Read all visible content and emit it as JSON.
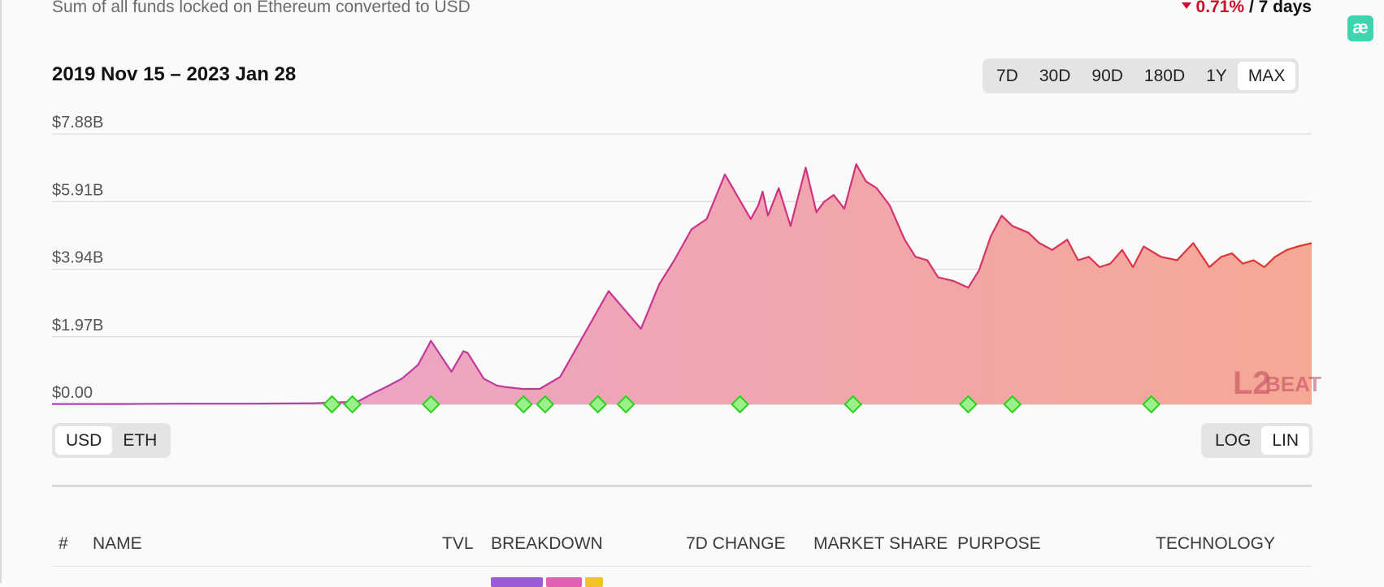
{
  "header": {
    "subtitle": "Sum of all funds locked on Ethereum converted to USD",
    "change_value": "0.71%",
    "change_period": "/ 7 days",
    "change_direction": "down",
    "negative_color": "#c8102e"
  },
  "extension_badge": {
    "label": "æ"
  },
  "date_range": "2019 Nov 15 – 2023 Jan 28",
  "range_options": [
    {
      "label": "7D",
      "active": false
    },
    {
      "label": "30D",
      "active": false
    },
    {
      "label": "90D",
      "active": false
    },
    {
      "label": "180D",
      "active": false
    },
    {
      "label": "1Y",
      "active": false
    },
    {
      "label": "MAX",
      "active": true
    }
  ],
  "unit_options": [
    {
      "label": "USD",
      "active": true
    },
    {
      "label": "ETH",
      "active": false
    }
  ],
  "scale_options": [
    {
      "label": "LOG",
      "active": false
    },
    {
      "label": "LIN",
      "active": true
    }
  ],
  "watermark": {
    "number": "L2",
    "text": "BEAT"
  },
  "chart_data": {
    "type": "area",
    "title": "",
    "xlabel": "",
    "ylabel": "",
    "x_range": [
      "2019-11-15",
      "2023-01-28"
    ],
    "ylim": [
      0,
      7.88
    ],
    "y_unit": "B USD",
    "y_ticks": [
      {
        "value": 0,
        "label": "$0.00"
      },
      {
        "value": 1.97,
        "label": "$1.97B"
      },
      {
        "value": 3.94,
        "label": "$3.94B"
      },
      {
        "value": 5.91,
        "label": "$5.91B"
      },
      {
        "value": 7.88,
        "label": "$7.88B"
      }
    ],
    "grid": true,
    "colors": {
      "start": "#c0389a",
      "end": "#e0362a",
      "fill_start": "#e9a3d2",
      "fill_end": "#f6a895",
      "marker_fill": "#9af08a",
      "marker_stroke": "#2ecf1e"
    },
    "series": [
      {
        "x": [
          "2019-11-15",
          "2020-01-15",
          "2020-03-15",
          "2020-05-15",
          "2020-07-15",
          "2020-08-25",
          "2020-09-10",
          "2020-09-20",
          "2020-10-05",
          "2020-10-20",
          "2020-11-01",
          "2020-11-20",
          "2020-12-01",
          "2020-12-05",
          "2020-12-20",
          "2021-01-01",
          "2021-01-10",
          "2021-01-25",
          "2021-02-10",
          "2021-03-01",
          "2021-04-15",
          "2021-05-15",
          "2021-06-01",
          "2021-06-15",
          "2021-07-01",
          "2021-07-15",
          "2021-08-01",
          "2021-08-25",
          "2021-09-01",
          "2021-09-05",
          "2021-09-10",
          "2021-09-20",
          "2021-10-01",
          "2021-10-15",
          "2021-10-25",
          "2021-11-01",
          "2021-11-10",
          "2021-11-20",
          "2021-12-01",
          "2021-12-10",
          "2021-12-20",
          "2022-01-01",
          "2022-01-15",
          "2022-01-25",
          "2022-02-05",
          "2022-02-15",
          "2022-03-01",
          "2022-03-15",
          "2022-03-25",
          "2022-04-05",
          "2022-04-15",
          "2022-04-25",
          "2022-05-10",
          "2022-05-20",
          "2022-06-01",
          "2022-06-15",
          "2022-06-25",
          "2022-07-05",
          "2022-07-15",
          "2022-07-25",
          "2022-08-05",
          "2022-08-15",
          "2022-08-25",
          "2022-09-10",
          "2022-09-25",
          "2022-10-10",
          "2022-10-25",
          "2022-11-05",
          "2022-11-15",
          "2022-11-25",
          "2022-12-05",
          "2022-12-15",
          "2022-12-25",
          "2023-01-05",
          "2023-01-15",
          "2023-01-28"
        ],
        "values": [
          0.01,
          0.01,
          0.02,
          0.02,
          0.03,
          0.08,
          0.35,
          0.5,
          0.75,
          1.15,
          1.85,
          0.95,
          1.55,
          1.5,
          0.75,
          0.55,
          0.5,
          0.45,
          0.45,
          0.8,
          3.3,
          2.2,
          3.5,
          4.2,
          5.1,
          5.4,
          6.7,
          5.4,
          5.8,
          6.2,
          5.5,
          6.3,
          5.2,
          6.9,
          5.6,
          5.9,
          6.1,
          5.7,
          7.0,
          6.5,
          6.3,
          5.8,
          4.8,
          4.3,
          4.2,
          3.7,
          3.6,
          3.4,
          3.9,
          4.9,
          5.5,
          5.2,
          5.0,
          4.7,
          4.5,
          4.8,
          4.2,
          4.3,
          4.0,
          4.1,
          4.5,
          4.0,
          4.6,
          4.3,
          4.2,
          4.7,
          4.0,
          4.3,
          4.4,
          4.1,
          4.2,
          4.0,
          4.3,
          4.5,
          4.6,
          4.7
        ]
      }
    ],
    "event_markers": [
      "2020-08-01",
      "2020-08-20",
      "2020-11-01",
      "2021-01-26",
      "2021-02-15",
      "2021-04-05",
      "2021-05-01",
      "2021-08-15",
      "2021-11-28",
      "2022-03-15",
      "2022-04-25",
      "2022-09-01"
    ]
  },
  "table": {
    "columns": [
      "#",
      "NAME",
      "TVL",
      "BREAKDOWN",
      "7D CHANGE",
      "MARKET SHARE",
      "PURPOSE",
      "TECHNOLOGY"
    ]
  }
}
